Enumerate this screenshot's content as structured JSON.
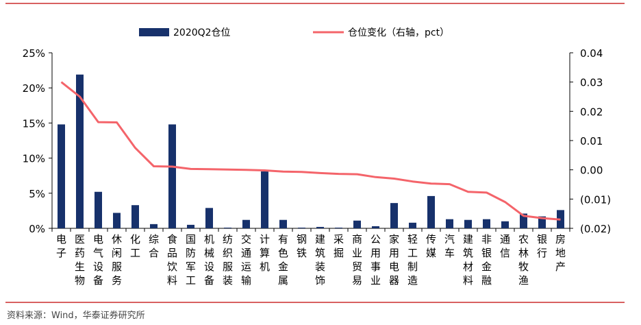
{
  "colors": {
    "bar": "#17316b",
    "line": "#f4646a",
    "rule": "#c00000",
    "axis": "#000000"
  },
  "source": "资料来源：Wind，华泰证券研究所",
  "chart_data": {
    "type": "bar",
    "categories": [
      "电子",
      "医药生物",
      "电气设备",
      "休闲服务",
      "化工",
      "综合",
      "食品饮料",
      "国防军工",
      "机械设备",
      "纺织服装",
      "交通运输",
      "计算机",
      "有色金属",
      "钢铁",
      "建筑装饰",
      "采掘",
      "商业贸易",
      "公用事业",
      "家用电器",
      "轻工制造",
      "传媒",
      "汽车",
      "建筑材料",
      "非银金融",
      "通信",
      "农林牧渔",
      "银行",
      "房地产"
    ],
    "series": [
      {
        "name": "2020Q2仓位",
        "type": "bar",
        "axis": "left",
        "values": [
          14.8,
          21.9,
          5.2,
          2.2,
          3.3,
          0.6,
          14.8,
          0.5,
          2.9,
          0.1,
          1.2,
          8.1,
          1.2,
          0.1,
          0.2,
          0.1,
          1.1,
          0.3,
          3.6,
          0.8,
          4.6,
          1.3,
          1.2,
          1.3,
          1.0,
          2.1,
          1.7,
          2.6
        ]
      },
      {
        "name": "仓位变化（右轴，pct）",
        "type": "line",
        "axis": "right",
        "values": [
          0.03,
          0.025,
          0.0163,
          0.0162,
          0.0075,
          0.0012,
          0.0011,
          0.0003,
          0.0002,
          0.0001,
          0.0,
          -0.0002,
          -0.0006,
          -0.0007,
          -0.0011,
          -0.0014,
          -0.0015,
          -0.0025,
          -0.003,
          -0.004,
          -0.0047,
          -0.0049,
          -0.0075,
          -0.0078,
          -0.011,
          -0.0157,
          -0.0165,
          -0.017
        ]
      }
    ],
    "y_left": {
      "ticks": [
        "25%",
        "20%",
        "15%",
        "10%",
        "5%",
        "0%"
      ],
      "min": 0,
      "max": 25
    },
    "y_right": {
      "ticks": [
        "0.04",
        "0.03",
        "0.02",
        "0.01",
        "0.00",
        "(0.01)",
        "(0.02)"
      ],
      "min": -0.02,
      "max": 0.04
    },
    "legend_position": "top",
    "grid": false
  }
}
